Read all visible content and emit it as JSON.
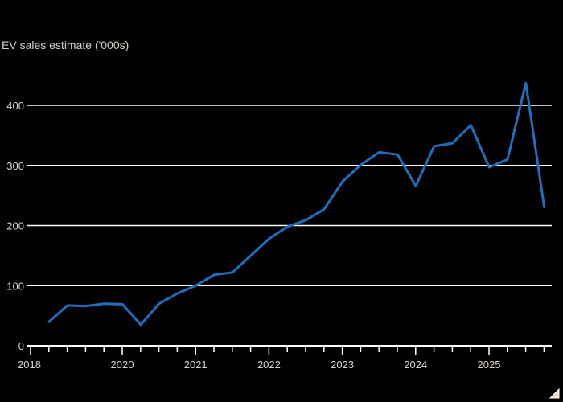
{
  "chart_data": {
    "type": "line",
    "title": "EV sales estimate ('000s)",
    "xlabel": "",
    "ylabel": "EV sales estimate ('000s)",
    "ylim": [
      0,
      450
    ],
    "yticks": [
      0,
      100,
      200,
      300,
      400
    ],
    "xtick_labels": [
      "2018",
      "2020",
      "2021",
      "2022",
      "2023",
      "2024",
      "2025"
    ],
    "grid": true,
    "legend": null,
    "line_color": "#1f6fc1",
    "x": [
      "2018 Q3",
      "2018 Q4",
      "2019 Q1",
      "2019 Q2",
      "2019 Q3",
      "2019 Q4",
      "2020 Q1",
      "2020 Q2",
      "2020 Q3",
      "2020 Q4",
      "2021 Q1",
      "2021 Q2",
      "2021 Q3",
      "2021 Q4",
      "2022 Q1",
      "2022 Q2",
      "2022 Q3",
      "2022 Q4",
      "2023 Q1",
      "2023 Q2",
      "2023 Q3",
      "2023 Q4",
      "2024 Q1",
      "2024 Q2",
      "2024 Q3",
      "2024 Q4",
      "2025 Q1",
      "2025 Q2"
    ],
    "series": [
      {
        "name": "EV sales estimate",
        "values": [
          40,
          67,
          66,
          70,
          69,
          35,
          70,
          87,
          100,
          118,
          122,
          150,
          178,
          198,
          209,
          227,
          273,
          301,
          322,
          318,
          266,
          332,
          337,
          367,
          297,
          310,
          437,
          231
        ]
      }
    ]
  },
  "header": {
    "title": "EV sales estimate ('000s)"
  },
  "axis": {
    "y_labels": [
      "0",
      "100",
      "200",
      "300",
      "400"
    ],
    "x_labels": [
      "2018",
      "2020",
      "2021",
      "2022",
      "2023",
      "2024",
      "2025"
    ]
  }
}
